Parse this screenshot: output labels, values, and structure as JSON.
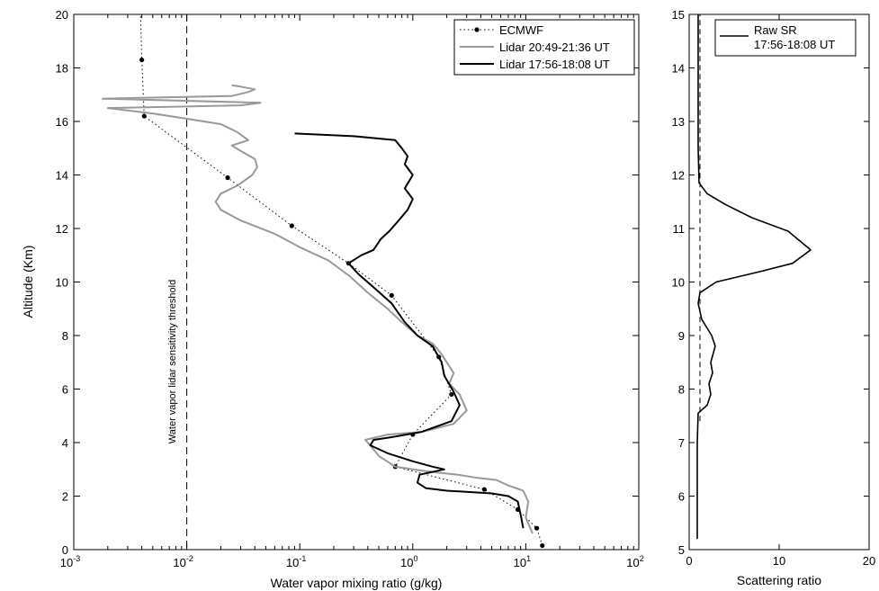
{
  "chart_data": [
    {
      "type": "line",
      "xlabel": "Water vapor mixing ratio (g/kg)",
      "ylabel": "Altitude (Km)",
      "x_scale": "log",
      "xlim": [
        0.001,
        100
      ],
      "ylim": [
        0,
        20
      ],
      "x_ticks": [
        0.001,
        0.01,
        0.1,
        1,
        10,
        100
      ],
      "x_tick_labels": [
        {
          "base": "10",
          "exp": "-3"
        },
        {
          "base": "10",
          "exp": "-2"
        },
        {
          "base": "10",
          "exp": "-1"
        },
        {
          "base": "10",
          "exp": "0"
        },
        {
          "base": "10",
          "exp": "1"
        },
        {
          "base": "10",
          "exp": "2"
        }
      ],
      "y_ticks": [
        0,
        2,
        4,
        6,
        8,
        10,
        12,
        14,
        16,
        18,
        20
      ],
      "legend_position": "top-right",
      "threshold": {
        "x": 0.01,
        "label": "Water vapor  lidar sensitivity threshold",
        "style": "dashed"
      },
      "series": [
        {
          "name": "ECMWF",
          "style": "dotted-markers",
          "color": "#000000",
          "points": [
            [
              14,
              0.15
            ],
            [
              12.5,
              0.8
            ],
            [
              8.5,
              1.5
            ],
            [
              4.3,
              2.25
            ],
            [
              0.7,
              3.1
            ],
            [
              1.0,
              4.3
            ],
            [
              2.2,
              5.8
            ],
            [
              1.7,
              7.2
            ],
            [
              0.65,
              9.5
            ],
            [
              0.27,
              10.7
            ],
            [
              0.085,
              12.1
            ],
            [
              0.023,
              13.9
            ],
            [
              0.0042,
              16.2
            ],
            [
              0.004,
              18.3
            ],
            [
              0.0039,
              20
            ]
          ]
        },
        {
          "name": "Lidar 20:49-21:36 UT",
          "style": "solid",
          "color": "#999999",
          "points": [
            [
              11.5,
              0.6
            ],
            [
              10,
              1.2
            ],
            [
              10.5,
              1.8
            ],
            [
              9.5,
              2.2
            ],
            [
              7,
              2.4
            ],
            [
              5.5,
              2.6
            ],
            [
              3.5,
              2.7
            ],
            [
              2.5,
              2.8
            ],
            [
              1.5,
              2.9
            ],
            [
              1.0,
              3.0
            ],
            [
              0.7,
              3.1
            ],
            [
              0.5,
              3.5
            ],
            [
              0.42,
              3.9
            ],
            [
              0.38,
              4.1
            ],
            [
              0.6,
              4.3
            ],
            [
              1.2,
              4.4
            ],
            [
              2.3,
              4.7
            ],
            [
              3.0,
              5.2
            ],
            [
              2.6,
              5.8
            ],
            [
              2.1,
              6.2
            ],
            [
              2.3,
              6.6
            ],
            [
              2.0,
              7.0
            ],
            [
              1.8,
              7.3
            ],
            [
              1.5,
              7.7
            ],
            [
              1.1,
              8.0
            ],
            [
              0.8,
              8.5
            ],
            [
              0.6,
              9.0
            ],
            [
              0.4,
              9.6
            ],
            [
              0.28,
              10.2
            ],
            [
              0.18,
              10.8
            ],
            [
              0.1,
              11.3
            ],
            [
              0.06,
              11.8
            ],
            [
              0.03,
              12.3
            ],
            [
              0.02,
              12.7
            ],
            [
              0.018,
              13.0
            ],
            [
              0.02,
              13.3
            ],
            [
              0.028,
              13.6
            ],
            [
              0.038,
              14.0
            ],
            [
              0.042,
              14.3
            ],
            [
              0.04,
              14.6
            ],
            [
              0.03,
              14.9
            ],
            [
              0.025,
              15.1
            ],
            [
              0.035,
              15.3
            ],
            [
              0.028,
              15.6
            ],
            [
              0.02,
              15.9
            ],
            [
              0.01,
              16.1
            ],
            [
              0.005,
              16.3
            ],
            [
              0.002,
              16.5
            ],
            [
              0.03,
              16.6
            ],
            [
              0.045,
              16.7
            ],
            [
              0.0018,
              16.85
            ],
            [
              0.025,
              16.95
            ],
            [
              0.035,
              17.1
            ],
            [
              0.04,
              17.2
            ],
            [
              0.03,
              17.3
            ],
            [
              0.025,
              17.35
            ]
          ]
        },
        {
          "name": "Lidar 17:56-18:08 UT",
          "style": "solid",
          "color": "#000000",
          "points": [
            [
              9.5,
              0.8
            ],
            [
              9.0,
              1.3
            ],
            [
              8.5,
              1.8
            ],
            [
              7.0,
              2.0
            ],
            [
              5.0,
              2.1
            ],
            [
              2.0,
              2.2
            ],
            [
              1.3,
              2.3
            ],
            [
              1.1,
              2.5
            ],
            [
              1.15,
              2.8
            ],
            [
              1.9,
              3.0
            ],
            [
              1.5,
              3.1
            ],
            [
              1.0,
              3.3
            ],
            [
              0.6,
              3.6
            ],
            [
              0.42,
              3.9
            ],
            [
              0.45,
              4.1
            ],
            [
              0.65,
              4.2
            ],
            [
              1.2,
              4.4
            ],
            [
              2.2,
              4.8
            ],
            [
              2.6,
              5.4
            ],
            [
              2.3,
              5.9
            ],
            [
              1.9,
              6.5
            ],
            [
              1.8,
              7.0
            ],
            [
              1.5,
              7.6
            ],
            [
              1.1,
              8.0
            ],
            [
              0.85,
              8.5
            ],
            [
              0.65,
              9.2
            ],
            [
              0.45,
              9.8
            ],
            [
              0.33,
              10.3
            ],
            [
              0.27,
              10.7
            ],
            [
              0.35,
              11.0
            ],
            [
              0.45,
              11.2
            ],
            [
              0.52,
              11.6
            ],
            [
              0.62,
              11.9
            ],
            [
              0.75,
              12.3
            ],
            [
              0.9,
              12.7
            ],
            [
              1.0,
              13.1
            ],
            [
              0.85,
              13.5
            ],
            [
              1.0,
              14.0
            ],
            [
              0.85,
              14.4
            ],
            [
              0.9,
              14.7
            ],
            [
              0.8,
              15.0
            ],
            [
              0.7,
              15.3
            ],
            [
              0.3,
              15.45
            ],
            [
              0.09,
              15.55
            ]
          ]
        }
      ]
    },
    {
      "type": "line",
      "xlabel": "Scattering ratio",
      "ylabel": "",
      "xlim": [
        0,
        20
      ],
      "ylim": [
        5,
        15
      ],
      "x_ticks": [
        0,
        10,
        20
      ],
      "y_ticks": [
        5,
        6,
        7,
        8,
        9,
        10,
        11,
        12,
        13,
        14,
        15
      ],
      "legend_position": "top-right",
      "series": [
        {
          "name": "Raw SR\n17:56-18:08 UT",
          "legend_lines": [
            "Raw SR",
            "17:56-18:08 UT"
          ],
          "color": "#000000",
          "points": [
            [
              0.9,
              5.2
            ],
            [
              0.9,
              6.0
            ],
            [
              0.9,
              7.0
            ],
            [
              1.0,
              7.55
            ],
            [
              2.0,
              7.7
            ],
            [
              2.4,
              7.9
            ],
            [
              2.2,
              8.1
            ],
            [
              2.6,
              8.3
            ],
            [
              2.4,
              8.5
            ],
            [
              2.9,
              8.8
            ],
            [
              2.5,
              9.0
            ],
            [
              1.4,
              9.3
            ],
            [
              1.0,
              9.6
            ],
            [
              1.2,
              9.8
            ],
            [
              3.0,
              10.0
            ],
            [
              8.0,
              10.2
            ],
            [
              11.5,
              10.35
            ],
            [
              13.5,
              10.6
            ],
            [
              11.0,
              10.95
            ],
            [
              7.0,
              11.2
            ],
            [
              4.0,
              11.45
            ],
            [
              2.0,
              11.65
            ],
            [
              1.1,
              11.85
            ],
            [
              1.0,
              12.5
            ],
            [
              1.0,
              14.0
            ],
            [
              1.0,
              15.0
            ]
          ]
        },
        {
          "name": "",
          "style": "dashed",
          "color": "#000000",
          "points": [
            [
              1.2,
              7.4
            ],
            [
              1.2,
              15.0
            ]
          ]
        }
      ]
    }
  ]
}
